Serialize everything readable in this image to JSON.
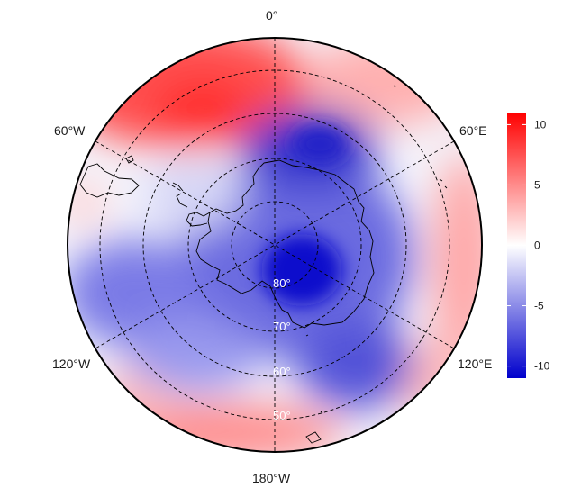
{
  "map": {
    "projection": "south polar stereographic",
    "meridian_labels": {
      "top": "0°",
      "upper_left": "60°W",
      "upper_right": "60°E",
      "lower_left": "120°W",
      "lower_right": "120°E",
      "bottom": "180°W"
    },
    "parallel_labels": [
      "80°",
      "70°",
      "60°",
      "50°"
    ],
    "graticule": "dashed",
    "coastlines": "black outline"
  },
  "colorbar": {
    "min": -11,
    "max": 11,
    "ticks": [
      "10",
      "5",
      "0",
      "-5",
      "-10"
    ],
    "colors": {
      "high": "#ff0000",
      "mid": "#ffffff",
      "low": "#0000cc"
    }
  }
}
